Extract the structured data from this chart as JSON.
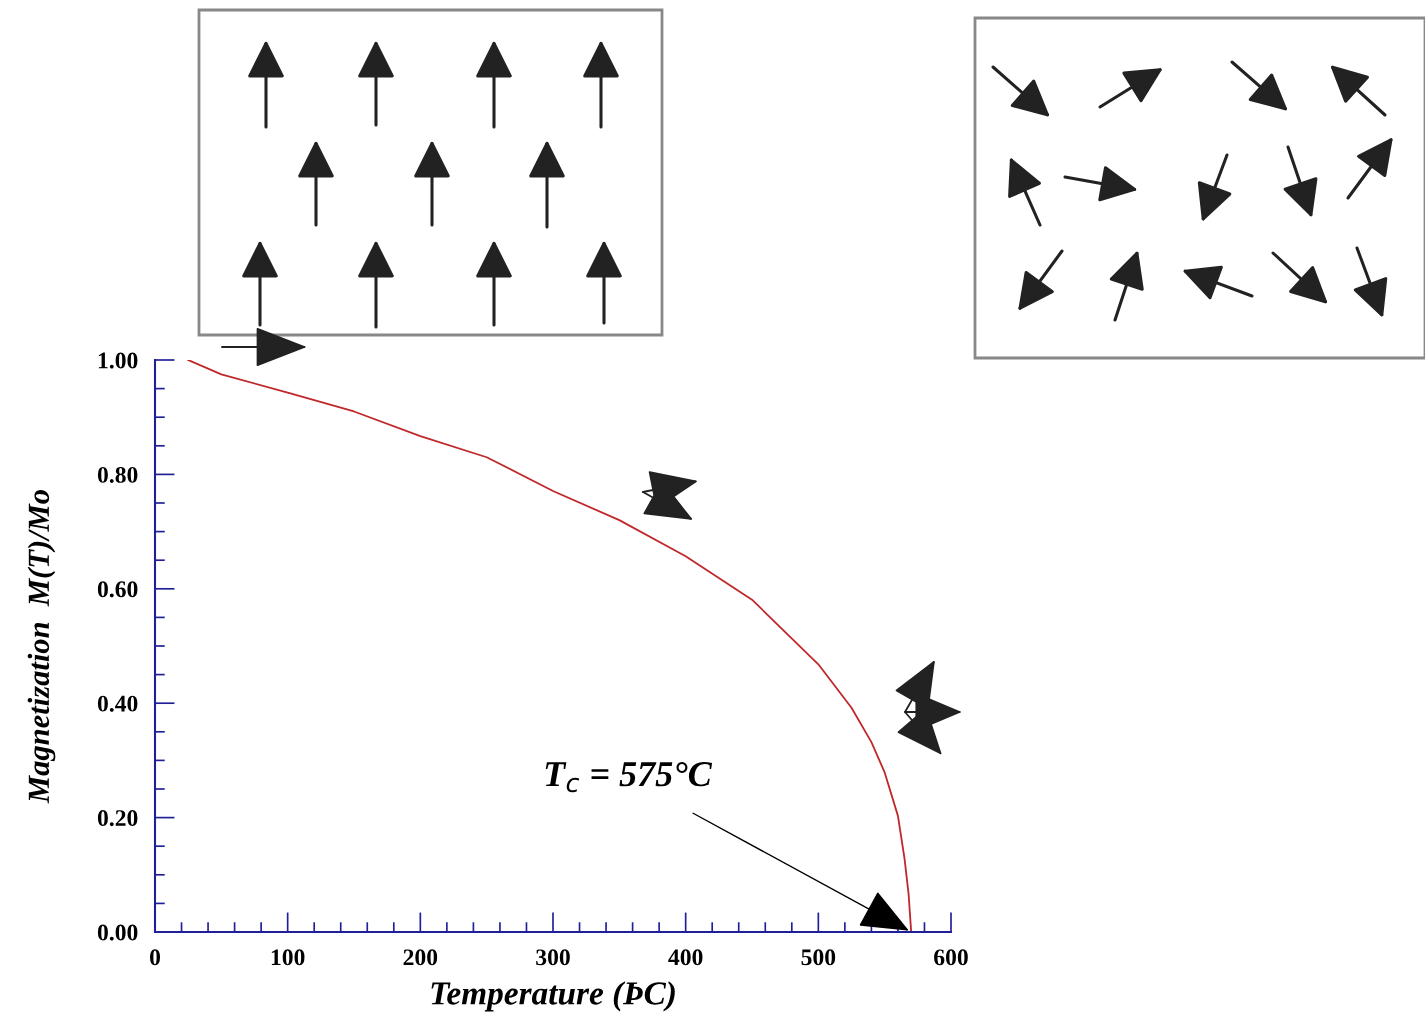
{
  "chart_data": {
    "type": "line",
    "xlabel": "Temperature (ÞC)",
    "ylabel": "Magnetization  M(T)/Mo",
    "x": [
      25,
      50,
      100,
      150,
      200,
      250,
      300,
      350,
      400,
      450,
      500,
      525,
      540,
      550,
      560,
      565,
      568,
      570
    ],
    "series": [
      {
        "color": "#c0282b",
        "values": [
          1.0,
          0.975,
          0.943,
          0.91,
          0.867,
          0.83,
          0.771,
          0.72,
          0.657,
          0.581,
          0.468,
          0.392,
          0.332,
          0.279,
          0.203,
          0.128,
          0.067,
          0.0
        ]
      }
    ],
    "xlim": [
      0,
      600
    ],
    "xticks": [
      0,
      {
        "value": 20,
        "label": null
      },
      {
        "value": 40,
        "label": null
      },
      {
        "value": 60,
        "label": null
      },
      {
        "value": 80,
        "label": null
      },
      100,
      {
        "value": 120,
        "label": null
      },
      {
        "value": 140,
        "label": null
      },
      {
        "value": 160,
        "label": null
      },
      {
        "value": 180,
        "label": null
      },
      200,
      {
        "value": 220,
        "label": null
      },
      {
        "value": 240,
        "label": null
      },
      {
        "value": 260,
        "label": null
      },
      {
        "value": 280,
        "label": null
      },
      300,
      {
        "value": 320,
        "label": null
      },
      {
        "value": 340,
        "label": null
      },
      {
        "value": 360,
        "label": null
      },
      {
        "value": 380,
        "label": null
      },
      400,
      {
        "value": 420,
        "label": null
      },
      {
        "value": 440,
        "label": null
      },
      {
        "value": 460,
        "label": null
      },
      {
        "value": 480,
        "label": null
      },
      500,
      {
        "value": 520,
        "label": null
      },
      {
        "value": 540,
        "label": null
      },
      {
        "value": 560,
        "label": null
      },
      {
        "value": 580,
        "label": null
      },
      600
    ],
    "ylim": [
      0,
      1
    ],
    "yticks": [
      {
        "value": 0,
        "label": "0.00"
      },
      {
        "value": 0.05,
        "label": null
      },
      {
        "value": 0.1,
        "label": null
      },
      {
        "value": 0.15,
        "label": null
      },
      {
        "value": 0.2,
        "label": "0.20"
      },
      {
        "value": 0.25,
        "label": null
      },
      {
        "value": 0.3,
        "label": null
      },
      {
        "value": 0.35,
        "label": null
      },
      {
        "value": 0.4,
        "label": "0.40"
      },
      {
        "value": 0.45,
        "label": null
      },
      {
        "value": 0.5,
        "label": null
      },
      {
        "value": 0.55,
        "label": null
      },
      {
        "value": 0.6,
        "label": "0.60"
      },
      {
        "value": 0.65,
        "label": null
      },
      {
        "value": 0.7,
        "label": null
      },
      {
        "value": 0.75,
        "label": null
      },
      {
        "value": 0.8,
        "label": "0.80"
      },
      {
        "value": 0.85,
        "label": null
      },
      {
        "value": 0.9,
        "label": null
      },
      {
        "value": 0.95,
        "label": null
      },
      {
        "value": 1.0,
        "label": "1.00"
      }
    ],
    "grid": false,
    "legend": false,
    "marker": "none",
    "line_style": "solid",
    "annotations": [
      {
        "text": "T$_{c}$ = 575°C",
        "x": 570,
        "y": 0
      }
    ]
  }
}
